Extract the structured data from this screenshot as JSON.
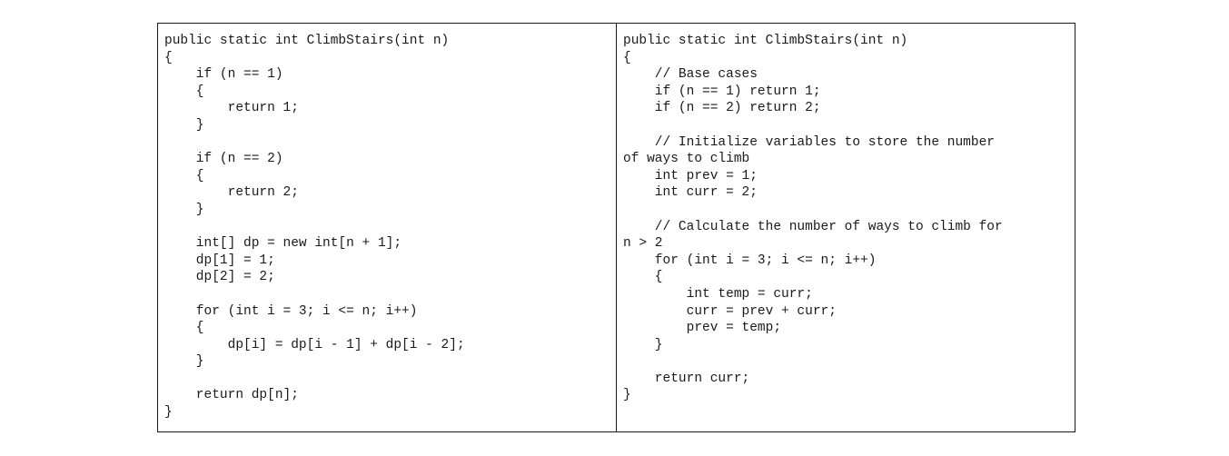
{
  "left_code": {
    "lines": [
      "public static int ClimbStairs(int n)",
      "{",
      "    if (n == 1)",
      "    {",
      "        return 1;",
      "    }",
      "",
      "    if (n == 2)",
      "    {",
      "        return 2;",
      "    }",
      "",
      "    int[] dp = new int[n + 1];",
      "    dp[1] = 1;",
      "    dp[2] = 2;",
      "",
      "    for (int i = 3; i <= n; i++)",
      "    {",
      "        dp[i] = dp[i - 1] + dp[i - 2];",
      "    }",
      "",
      "    return dp[n];",
      "}"
    ]
  },
  "right_code": {
    "lines": [
      "public static int ClimbStairs(int n)",
      "{",
      "    // Base cases",
      "    if (n == 1) return 1;",
      "    if (n == 2) return 2;",
      "",
      "    // Initialize variables to store the number",
      "of ways to climb",
      "    int prev = 1;",
      "    int curr = 2;",
      "",
      "    // Calculate the number of ways to climb for",
      "n > 2",
      "    for (int i = 3; i <= n; i++)",
      "    {",
      "        int temp = curr;",
      "        curr = prev + curr;",
      "        prev = temp;",
      "    }",
      "",
      "    return curr;",
      "}"
    ]
  }
}
